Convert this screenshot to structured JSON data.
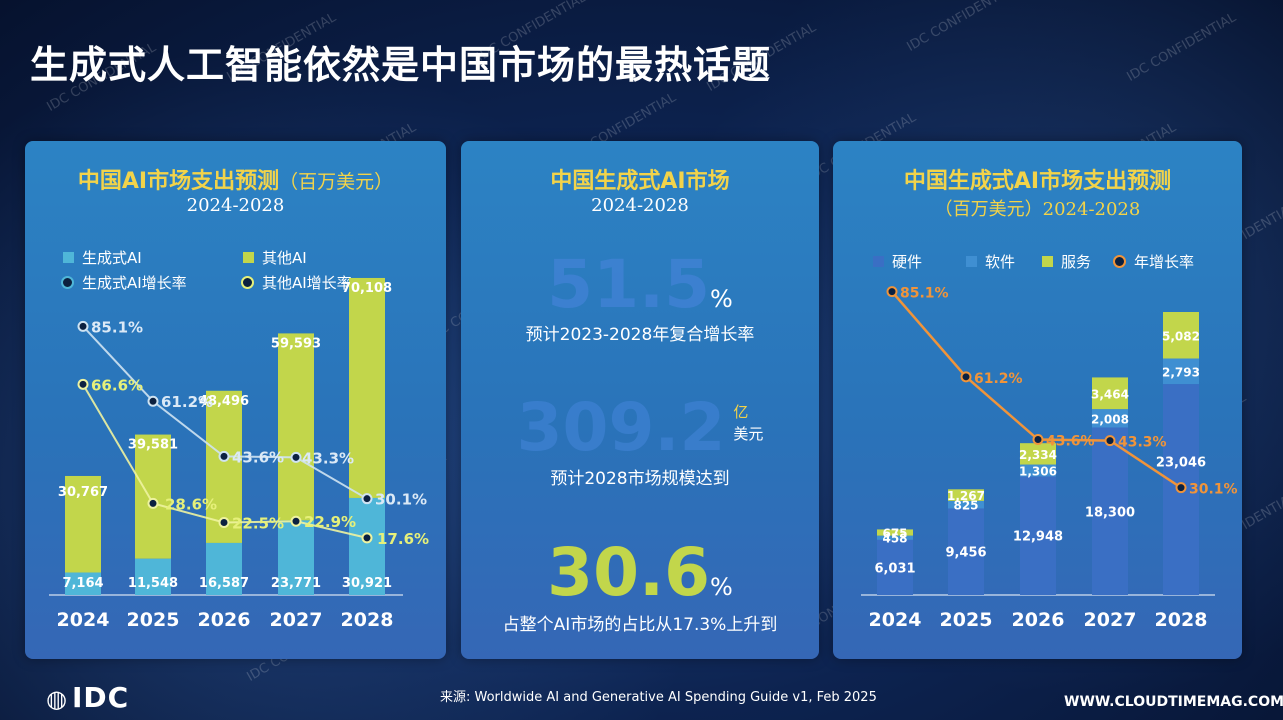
{
  "page": {
    "title": "生成式人工智能依然是中国市场的最热话题",
    "source": "来源: Worldwide AI and Generative AI Spending Guide v1, Feb 2025",
    "logo": "IDC",
    "site": "WWW.CLOUDTIMEMAG.COM",
    "watermark": "IDC CONFIDENTIAL",
    "colors": {
      "green": "#c2d64b",
      "lightblue": "#4fb6d8",
      "darkblue": "#3a6fc4",
      "orange": "#f0943a",
      "yellow": "#f2d34a"
    }
  },
  "panel1": {
    "title": "中国AI市场支出预测",
    "unit": "（百万美元）",
    "years": "2024-2028",
    "legend": {
      "genai": "生成式AI",
      "other": "其他AI",
      "genai_rate": "生成式AI增长率",
      "other_rate": "其他AI增长率"
    }
  },
  "panel2": {
    "title": "中国生成式AI市场",
    "years": "2024-2028",
    "stat1": {
      "value": "51.5",
      "unit": "%",
      "desc": "预计2023-2028年复合增长率"
    },
    "stat2": {
      "value": "309.2",
      "unit_top": "亿",
      "unit_bottom": "美元",
      "desc": "预计2028市场规模达到"
    },
    "stat3": {
      "value": "30.6",
      "unit": "%",
      "desc": "占整个AI市场的占比从17.3%上升到"
    }
  },
  "panel3": {
    "title": "中国生成式AI市场支出预测",
    "subtitle": "（百万美元）2024-2028",
    "legend": {
      "hardware": "硬件",
      "software": "软件",
      "services": "服务",
      "rate": "年增长率"
    }
  },
  "chart_data": [
    {
      "type": "bar",
      "title": "中国AI市场支出预测（百万美元）2024-2028",
      "categories": [
        "2024",
        "2025",
        "2026",
        "2027",
        "2028"
      ],
      "series": [
        {
          "name": "生成式AI",
          "values": [
            7164,
            11548,
            16587,
            23771,
            30921
          ],
          "labels": [
            "7,164",
            "11,548",
            "16,587",
            "23,771",
            "30,921"
          ]
        },
        {
          "name": "其他AI",
          "values": [
            30767,
            39581,
            48496,
            59593,
            70108
          ],
          "labels": [
            "30,767",
            "39,581",
            "48,496",
            "59,593",
            "70,108"
          ]
        },
        {
          "name": "生成式AI增长率",
          "type": "line",
          "values": [
            85.1,
            61.2,
            43.6,
            43.3,
            30.1
          ],
          "labels": [
            "85.1%",
            "61.2%",
            "43.6%",
            "43.3%",
            "30.1%"
          ]
        },
        {
          "name": "其他AI增长率",
          "type": "line",
          "values": [
            66.6,
            28.6,
            22.5,
            22.9,
            17.6
          ],
          "labels": [
            "66.6%",
            "28.6%",
            "22.5%",
            "22.9%",
            "17.6%"
          ]
        }
      ]
    },
    {
      "type": "bar",
      "stacked": true,
      "title": "中国生成式AI市场支出预测（百万美元）2024-2028",
      "categories": [
        "2024",
        "2025",
        "2026",
        "2027",
        "2028"
      ],
      "series": [
        {
          "name": "硬件",
          "values": [
            6031,
            9456,
            12948,
            18300,
            23046
          ],
          "labels": [
            "6,031",
            "9,456",
            "12,948",
            "18,300",
            "23,046"
          ]
        },
        {
          "name": "软件",
          "values": [
            458,
            825,
            1306,
            2008,
            2793
          ],
          "labels": [
            "458",
            "825",
            "1,306",
            "2,008",
            "2,793"
          ]
        },
        {
          "name": "服务",
          "values": [
            675,
            1267,
            2334,
            3464,
            5082
          ],
          "labels": [
            "675",
            "1,267",
            "2,334",
            "3,464",
            "5,082"
          ]
        },
        {
          "name": "年增长率",
          "type": "line",
          "values": [
            85.1,
            61.2,
            43.6,
            43.3,
            30.1
          ],
          "labels": [
            "85.1%",
            "61.2%",
            "43.6%",
            "43.3%",
            "30.1%"
          ]
        }
      ]
    }
  ]
}
